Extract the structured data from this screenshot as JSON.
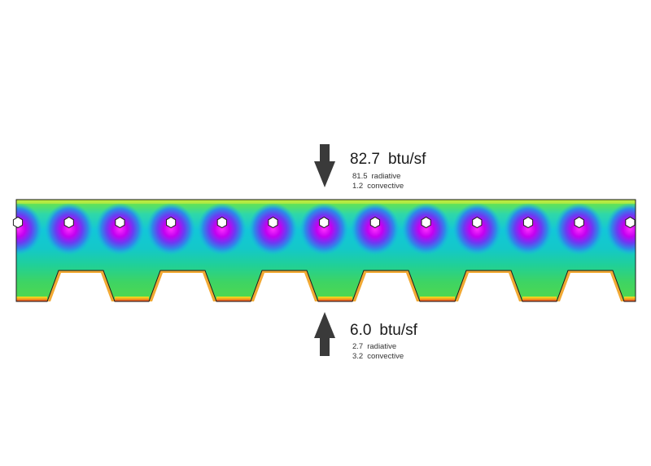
{
  "top_flux": {
    "total": "82.7",
    "unit": "btu/sf",
    "radiative_value": "81.5",
    "radiative_label": "radiative",
    "convective_value": "1.2",
    "convective_label": "convective"
  },
  "bottom_flux": {
    "total": "6.0",
    "unit": "btu/sf",
    "radiative_value": "2.7",
    "radiative_label": "radiative",
    "convective_value": "3.2",
    "convective_label": "convective"
  },
  "colors": {
    "arrow": "#3a3a3a",
    "slab_top": "#5fe25a",
    "slab_mid": "#14c8c8",
    "slab_low": "#36d36e",
    "hot_band": "#e8321e",
    "warm_band": "#f2a51e",
    "tube_glow": "#b400ff",
    "tube_core": "#ffffff",
    "outline": "#1a1a1a"
  },
  "tube_count": 13,
  "tube_icon": "hexagon-tube-icon"
}
